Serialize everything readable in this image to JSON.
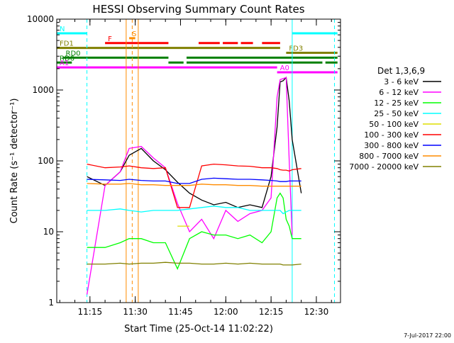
{
  "chart_data": {
    "type": "line",
    "title": "HESSI Observing Summary Count Rates",
    "xlabel": "Start Time (25-Oct-14 11:02:22)",
    "ylabel": "Count Rate (s⁻¹ detector⁻¹)",
    "y_scale": "log",
    "ylim": [
      1,
      10000
    ],
    "xlim": [
      "11:04",
      "12:38"
    ],
    "x_tick_labels": [
      "11:15",
      "11:30",
      "11:45",
      "12:00",
      "12:15",
      "12:30"
    ],
    "y_tick_labels": [
      "1",
      "10",
      "100",
      "1000",
      "10000"
    ],
    "grid": false,
    "legend": {
      "title": "Det 1,3,6,9",
      "placement": "right",
      "entries": [
        {
          "label": "3 - 6 keV",
          "color": "#000000"
        },
        {
          "label": "6 - 12 keV",
          "color": "#ff00ff"
        },
        {
          "label": "12 - 25 keV",
          "color": "#00ff00"
        },
        {
          "label": "25 - 50 keV",
          "color": "#00ffff"
        },
        {
          "label": "50 - 100 keV",
          "color": "#dddd00"
        },
        {
          "label": "100 - 300 keV",
          "color": "#ff0000"
        },
        {
          "label": "300 - 800 keV",
          "color": "#0000ff"
        },
        {
          "label": "800 - 7000 keV",
          "color": "#ff8c00"
        },
        {
          "label": "7000 - 20000 keV",
          "color": "#808000"
        }
      ]
    },
    "x": [
      "11:14",
      "11:20",
      "11:25",
      "11:28",
      "11:32",
      "11:36",
      "11:40",
      "11:44",
      "11:48",
      "11:52",
      "11:56",
      "12:00",
      "12:04",
      "12:08",
      "12:12",
      "12:15",
      "12:17",
      "12:18",
      "12:19",
      "12:20",
      "12:21",
      "12:22",
      "12:25",
      "12:27"
    ],
    "series": [
      {
        "name": "3 - 6 keV",
        "color": "#000000",
        "values": [
          60,
          45,
          70,
          120,
          150,
          100,
          75,
          50,
          35,
          28,
          24,
          26,
          22,
          24,
          22,
          60,
          300,
          1300,
          1350,
          1500,
          700,
          200,
          35,
          null
        ]
      },
      {
        "name": "6 - 12 keV",
        "color": "#ff00ff",
        "values": [
          1.3,
          45,
          70,
          150,
          160,
          110,
          80,
          25,
          10,
          15,
          8,
          20,
          14,
          18,
          20,
          30,
          800,
          1400,
          1450,
          1500,
          100,
          9,
          null,
          null
        ]
      },
      {
        "name": "12 - 25 keV",
        "color": "#00ff00",
        "values": [
          6,
          6,
          7,
          8,
          8,
          7,
          7,
          3,
          8,
          10,
          9,
          9,
          8,
          9,
          7,
          10,
          30,
          35,
          30,
          15,
          12,
          8,
          8,
          null
        ]
      },
      {
        "name": "25 - 50 keV",
        "color": "#00ffff",
        "values": [
          20,
          20,
          21,
          20,
          19,
          20,
          20,
          20,
          21,
          22,
          23,
          22,
          22,
          20,
          20,
          20,
          20,
          20,
          18,
          19,
          20,
          20,
          20,
          null
        ]
      },
      {
        "name": "50 - 100 keV",
        "color": "#dddd00",
        "values": [
          null,
          null,
          null,
          null,
          null,
          null,
          null,
          12,
          12,
          null,
          null,
          null,
          null,
          null,
          null,
          null,
          null,
          null,
          null,
          null,
          null,
          null,
          null,
          null
        ]
      },
      {
        "name": "100 - 300 keV",
        "color": "#ff0000",
        "values": [
          90,
          80,
          82,
          85,
          80,
          78,
          80,
          22,
          22,
          85,
          90,
          88,
          85,
          84,
          80,
          80,
          78,
          75,
          74,
          74,
          72,
          75,
          78,
          null
        ]
      },
      {
        "name": "300 - 800 keV",
        "color": "#0000ff",
        "values": [
          55,
          54,
          53,
          55,
          53,
          52,
          52,
          48,
          48,
          55,
          57,
          56,
          55,
          55,
          54,
          53,
          52,
          51,
          51,
          51,
          52,
          52,
          52,
          null
        ]
      },
      {
        "name": "800 - 7000 keV",
        "color": "#ff8c00",
        "values": [
          48,
          47,
          47,
          48,
          46,
          46,
          45,
          45,
          45,
          47,
          46,
          46,
          45,
          45,
          44,
          44,
          44,
          44,
          44,
          44,
          44,
          44,
          44,
          null
        ]
      },
      {
        "name": "7000 - 20000 keV",
        "color": "#808000",
        "values": [
          3.5,
          3.5,
          3.6,
          3.5,
          3.6,
          3.6,
          3.7,
          3.6,
          3.6,
          3.5,
          3.5,
          3.6,
          3.5,
          3.6,
          3.5,
          3.5,
          3.5,
          3.5,
          3.4,
          3.4,
          3.4,
          3.4,
          3.5,
          null
        ]
      }
    ],
    "flag_bars": [
      {
        "label": "N",
        "color": "#00ffff",
        "segments": [
          [
            "11:04",
            "11:14"
          ],
          [
            "12:22",
            "12:37"
          ]
        ]
      },
      {
        "label": "S",
        "color": "#ff8c00",
        "segments": [
          [
            "11:28",
            "11:30"
          ]
        ]
      },
      {
        "label": "F",
        "color": "#ff0000",
        "segments": [
          [
            "11:20",
            "11:41"
          ],
          [
            "11:51",
            "11:58"
          ],
          [
            "11:59",
            "12:04"
          ],
          [
            "12:05",
            "12:09"
          ],
          [
            "12:12",
            "12:18"
          ]
        ]
      },
      {
        "label": "FD1",
        "color": "#808000",
        "segments": [
          [
            "11:04",
            "12:18"
          ]
        ]
      },
      {
        "label": "FD3",
        "color": "#808000",
        "segments": [
          [
            "12:20",
            "12:37"
          ]
        ]
      },
      {
        "label": "RD0",
        "color": "#008000",
        "segments": [
          [
            "11:06",
            "11:41"
          ],
          [
            "11:47",
            "12:37"
          ]
        ]
      },
      {
        "label": "RD6",
        "color": "#008000",
        "segments": [
          [
            "11:04",
            "11:09"
          ],
          [
            "11:41",
            "11:46"
          ],
          [
            "11:47",
            "12:32"
          ],
          [
            "12:33",
            "12:37"
          ]
        ]
      },
      {
        "label": "A1",
        "color": "#ff00ff",
        "segments": [
          [
            "11:04",
            "12:17"
          ]
        ]
      },
      {
        "label": "A0",
        "color": "#ff00ff",
        "segments": [
          [
            "12:17",
            "12:37"
          ]
        ]
      }
    ],
    "vertical_markers": [
      {
        "time": "11:14",
        "color": "#00ffff",
        "style": "dashed"
      },
      {
        "time": "11:27",
        "color": "#ff8c00",
        "style": "solid"
      },
      {
        "time": "11:29",
        "color": "#ff8c00",
        "style": "dashed"
      },
      {
        "time": "11:31",
        "color": "#ff8c00",
        "style": "solid"
      },
      {
        "time": "12:22",
        "color": "#00ffff",
        "style": "solid"
      },
      {
        "time": "12:36",
        "color": "#00ffff",
        "style": "dashed"
      }
    ]
  },
  "footer": {
    "date": "7-Jul-2017 22:00"
  }
}
